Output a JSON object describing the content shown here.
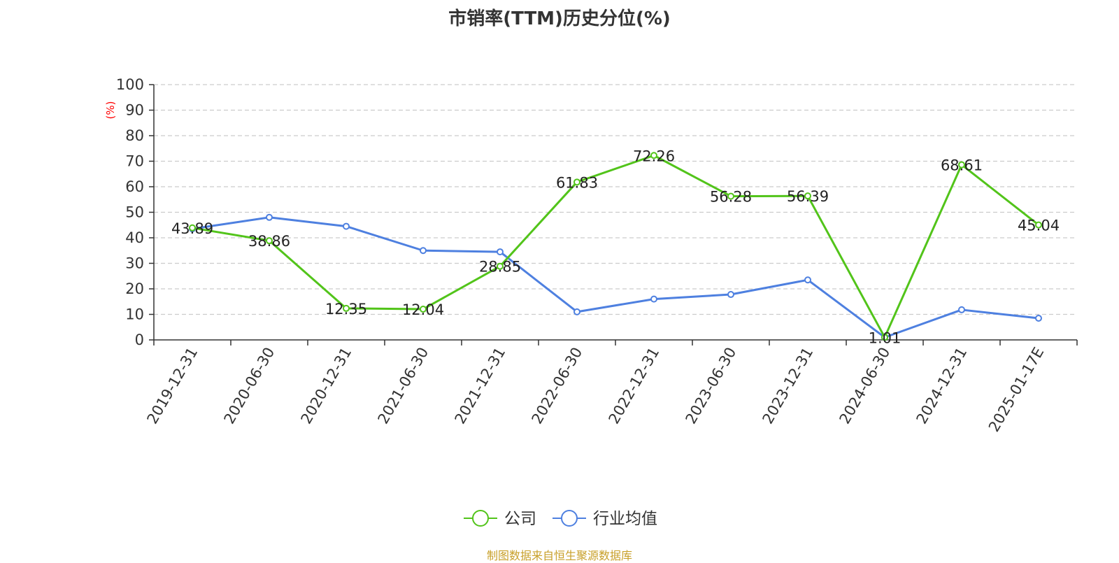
{
  "chart_data": {
    "type": "line",
    "title": "市销率(TTM)历史分位(%)",
    "ylabel": "(%)",
    "xlabel": "",
    "ylim": [
      0,
      100
    ],
    "y_ticks": [
      0,
      10,
      20,
      30,
      40,
      50,
      60,
      70,
      80,
      90,
      100
    ],
    "grid": true,
    "legend_position": "bottom-center",
    "categories": [
      "2019-12-31",
      "2020-06-30",
      "2020-12-31",
      "2021-06-30",
      "2021-12-31",
      "2022-06-30",
      "2022-12-31",
      "2023-06-30",
      "2023-12-31",
      "2024-06-30",
      "2024-12-31",
      "2025-01-17E"
    ],
    "series": [
      {
        "name": "公司",
        "color": "#52c41a",
        "values": [
          43.89,
          38.86,
          12.35,
          12.04,
          28.85,
          61.83,
          72.26,
          56.28,
          56.39,
          1.01,
          68.61,
          45.04
        ],
        "data_labels": [
          "43.89",
          "38.86",
          "12.35",
          "12.04",
          "28.85",
          "61.83",
          "72.26",
          "56.28",
          "56.39",
          "1.01",
          "68.61",
          "45.04"
        ]
      },
      {
        "name": "行业均值",
        "color": "#4e80e0",
        "values": [
          43.5,
          48.0,
          44.5,
          35.0,
          34.5,
          11.0,
          16.0,
          17.8,
          23.5,
          1.0,
          11.8,
          8.5
        ]
      }
    ]
  },
  "footer": {
    "source": "制图数据来自恒生聚源数据库",
    "source_color": "#c8a02a"
  },
  "axis_label_color": "#ff0000"
}
